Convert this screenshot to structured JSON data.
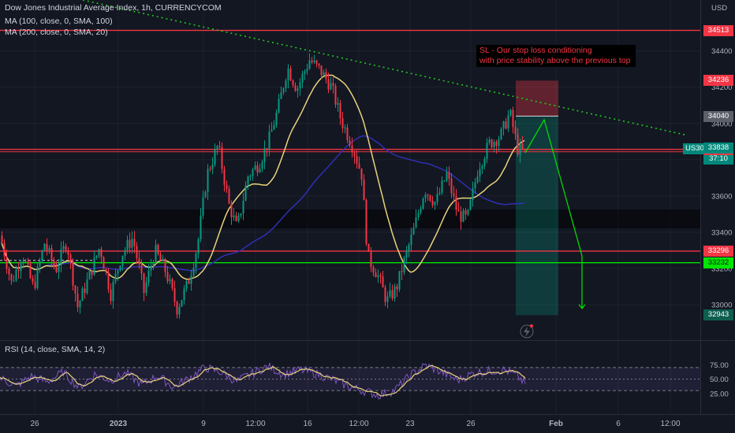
{
  "legend": {
    "title": "Dow Jones Industrial Average Index, 1h, CURRENCYCOM",
    "ma100": "MA (100, close, 0, SMA, 100)",
    "ma200": "MA (200, close, 0, SMA, 20)",
    "rsi": "RSI (14, close, SMA, 14, 2)"
  },
  "annotation": {
    "line1": "SL - Our stop loss conditioning",
    "line2": "with price stability above the previous top"
  },
  "currency": "USD",
  "symbol_tag": "US30",
  "countdown": "37:10",
  "price_tags": [
    {
      "id": "r34513",
      "text": "34513",
      "value": 34513,
      "bg": "#f23645",
      "fg": "#ffffff"
    },
    {
      "id": "r34236",
      "text": "34236",
      "value": 34236,
      "bg": "#f23645",
      "fg": "#ffffff"
    },
    {
      "id": "g34040",
      "text": "34040",
      "value": 34040,
      "bg": "#5d606b",
      "fg": "#ffffff"
    },
    {
      "id": "r33857",
      "text": "33857",
      "value": 33857,
      "bg": "#f23645",
      "fg": "#ffffff"
    },
    {
      "id": "c33838",
      "text": "33838",
      "value": 33838,
      "bg": "#00897b",
      "fg": "#ffffff"
    },
    {
      "id": "r33296",
      "text": "33296",
      "value": 33296,
      "bg": "#f23645",
      "fg": "#ffffff"
    },
    {
      "id": "g33232",
      "text": "33232",
      "value": 33232,
      "bg": "#00e600",
      "fg": "#131722"
    },
    {
      "id": "t32943",
      "text": "32943",
      "value": 32943,
      "bg": "#0e5e4f",
      "fg": "#ffffff"
    }
  ],
  "colors": {
    "background": "#131722",
    "grid": "#1e222d",
    "up": "#089981",
    "down": "#f23645",
    "ma100": "#2f2fb3",
    "ma200": "#e8d37a",
    "rsi_line": "#7e57c2",
    "rsi_ma": "#e8d37a",
    "resistance": "#f23645",
    "support": "#00e600",
    "trendline": "#22c722"
  },
  "chart_data": {
    "type": "candlestick",
    "title": "Dow Jones Industrial Average Index, 1h, CURRENCYCOM",
    "ylabel": "USD",
    "ylim": [
      32840,
      34650
    ],
    "yticks": [
      33000,
      33200,
      33400,
      33600,
      33800,
      34000,
      34200,
      34400
    ],
    "xticks": [
      "26",
      "2023",
      "9",
      "12:00",
      "16",
      "12:00",
      "23",
      "26",
      "Feb",
      "6",
      "12:00"
    ],
    "levels": {
      "resistance": [
        34513,
        33857,
        33296
      ],
      "support": [
        33232
      ],
      "stop_loss": 34236,
      "entry": 34040,
      "take_profit": 32943,
      "last_price": 33838
    },
    "price_path": [
      {
        "x": 0,
        "close": 33380
      },
      {
        "x": 14,
        "close": 33120
      },
      {
        "x": 28,
        "close": 33280
      },
      {
        "x": 42,
        "close": 33090
      },
      {
        "x": 56,
        "close": 33340
      },
      {
        "x": 70,
        "close": 33190
      },
      {
        "x": 84,
        "close": 33350
      },
      {
        "x": 98,
        "close": 32990
      },
      {
        "x": 112,
        "close": 33150
      },
      {
        "x": 126,
        "close": 33320
      },
      {
        "x": 140,
        "close": 33060
      },
      {
        "x": 154,
        "close": 33280
      },
      {
        "x": 168,
        "close": 33370
      },
      {
        "x": 182,
        "close": 33070
      },
      {
        "x": 196,
        "close": 33300
      },
      {
        "x": 210,
        "close": 33180
      },
      {
        "x": 224,
        "close": 32980
      },
      {
        "x": 238,
        "close": 33120
      },
      {
        "x": 250,
        "close": 33330
      },
      {
        "x": 262,
        "close": 33720
      },
      {
        "x": 276,
        "close": 33880
      },
      {
        "x": 290,
        "close": 33550
      },
      {
        "x": 300,
        "close": 33420
      },
      {
        "x": 314,
        "close": 33710
      },
      {
        "x": 328,
        "close": 33780
      },
      {
        "x": 340,
        "close": 33900
      },
      {
        "x": 352,
        "close": 34080
      },
      {
        "x": 364,
        "close": 34310
      },
      {
        "x": 376,
        "close": 34190
      },
      {
        "x": 392,
        "close": 34350
      },
      {
        "x": 406,
        "close": 34290
      },
      {
        "x": 420,
        "close": 34200
      },
      {
        "x": 432,
        "close": 34020
      },
      {
        "x": 446,
        "close": 33880
      },
      {
        "x": 458,
        "close": 33720
      },
      {
        "x": 466,
        "close": 33260
      },
      {
        "x": 478,
        "close": 33170
      },
      {
        "x": 490,
        "close": 33020
      },
      {
        "x": 502,
        "close": 33090
      },
      {
        "x": 512,
        "close": 33240
      },
      {
        "x": 524,
        "close": 33410
      },
      {
        "x": 538,
        "close": 33640
      },
      {
        "x": 552,
        "close": 33560
      },
      {
        "x": 566,
        "close": 33720
      },
      {
        "x": 580,
        "close": 33500
      },
      {
        "x": 592,
        "close": 33470
      },
      {
        "x": 606,
        "close": 33760
      },
      {
        "x": 620,
        "close": 33890
      },
      {
        "x": 634,
        "close": 33930
      },
      {
        "x": 646,
        "close": 34060
      },
      {
        "x": 656,
        "close": 33860
      },
      {
        "x": 666,
        "close": 33838
      }
    ],
    "projection": [
      {
        "x": 666,
        "close": 33838
      },
      {
        "x": 690,
        "close": 34020
      },
      {
        "x": 738,
        "close": 33270
      },
      {
        "x": 738,
        "close": 32980
      }
    ],
    "rsi": {
      "ylim": [
        0,
        100
      ],
      "levels": [
        70,
        50,
        30
      ],
      "tick_labels": [
        "75.00",
        "50.00",
        "25.00"
      ],
      "path": [
        {
          "x": 0,
          "v": 52
        },
        {
          "x": 20,
          "v": 38
        },
        {
          "x": 40,
          "v": 55
        },
        {
          "x": 60,
          "v": 45
        },
        {
          "x": 80,
          "v": 62
        },
        {
          "x": 100,
          "v": 35
        },
        {
          "x": 120,
          "v": 58
        },
        {
          "x": 140,
          "v": 48
        },
        {
          "x": 160,
          "v": 60
        },
        {
          "x": 180,
          "v": 40
        },
        {
          "x": 200,
          "v": 56
        },
        {
          "x": 220,
          "v": 36
        },
        {
          "x": 240,
          "v": 52
        },
        {
          "x": 260,
          "v": 70
        },
        {
          "x": 280,
          "v": 62
        },
        {
          "x": 300,
          "v": 46
        },
        {
          "x": 320,
          "v": 60
        },
        {
          "x": 340,
          "v": 72
        },
        {
          "x": 360,
          "v": 58
        },
        {
          "x": 380,
          "v": 66
        },
        {
          "x": 400,
          "v": 60
        },
        {
          "x": 420,
          "v": 50
        },
        {
          "x": 440,
          "v": 38
        },
        {
          "x": 460,
          "v": 30
        },
        {
          "x": 480,
          "v": 22
        },
        {
          "x": 500,
          "v": 30
        },
        {
          "x": 520,
          "v": 56
        },
        {
          "x": 540,
          "v": 74
        },
        {
          "x": 560,
          "v": 62
        },
        {
          "x": 580,
          "v": 48
        },
        {
          "x": 600,
          "v": 60
        },
        {
          "x": 620,
          "v": 64
        },
        {
          "x": 640,
          "v": 66
        },
        {
          "x": 656,
          "v": 55
        },
        {
          "x": 666,
          "v": 42
        }
      ]
    }
  }
}
